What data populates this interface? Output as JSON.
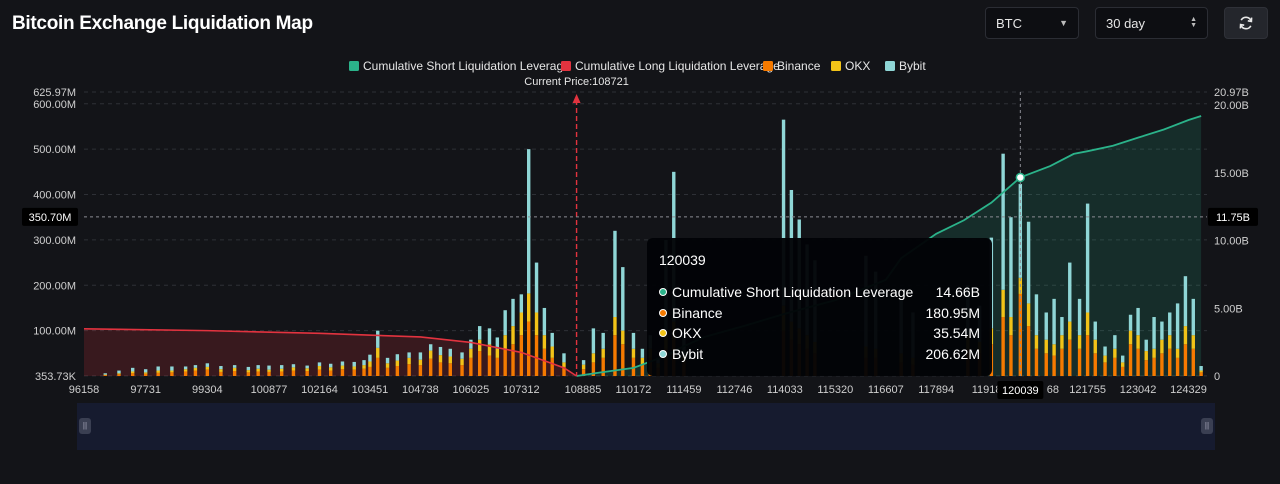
{
  "page": {
    "title": "Bitcoin Exchange Liquidation Map"
  },
  "controls": {
    "symbol": "BTC",
    "range": "30 day",
    "refresh_icon": "refresh-icon"
  },
  "colors": {
    "short_cum": "#2bb38a",
    "long_cum": "#e2333f",
    "binance": "#f57a00",
    "okx": "#f2c318",
    "bybit": "#8fd6d6",
    "background": "#131418"
  },
  "chart_data": {
    "type": "bar",
    "legend": [
      {
        "key": "short_cum",
        "label": "Cumulative Short Liquidation Leverage"
      },
      {
        "key": "long_cum",
        "label": "Cumulative Long Liquidation Leverage"
      },
      {
        "key": "binance",
        "label": "Binance"
      },
      {
        "key": "okx",
        "label": "OKX"
      },
      {
        "key": "bybit",
        "label": "Bybit"
      }
    ],
    "legend_position": "top-center",
    "x_ticks": [
      "96158",
      "97731",
      "99304",
      "100877",
      "102164",
      "103451",
      "104738",
      "106025",
      "107312",
      "108885",
      "110172",
      "111459",
      "112746",
      "114033",
      "115320",
      "116607",
      "117894",
      "11918",
      "120039",
      "68",
      "121755",
      "123042",
      "124329"
    ],
    "x_range": [
      96158,
      124800
    ],
    "left_axis": {
      "ticks": [
        "353.73K",
        "100.00M",
        "200.00M",
        "300.00M",
        "400.00M",
        "500.00M",
        "600.00M",
        "625.97M"
      ],
      "range": [
        0,
        625970000
      ]
    },
    "right_axis": {
      "ticks": [
        "0",
        "5.00B",
        "10.00B",
        "15.00B",
        "20.00B",
        "20.97B"
      ],
      "range": [
        0,
        20970000000
      ]
    },
    "current_price": {
      "label": "Current Price:108721",
      "value": 108721
    },
    "crosshair": {
      "x": 120039,
      "left_value": "350.70M",
      "right_value": "11.75B",
      "x_label": "120039"
    },
    "tooltip": {
      "header": "120039",
      "rows": [
        {
          "name": "Cumulative Short Liquidation Leverage",
          "value": "14.66B",
          "color": "#2bb38a"
        },
        {
          "name": "Binance",
          "value": "180.95M",
          "color": "#f57a00"
        },
        {
          "name": "OKX",
          "value": "35.54M",
          "color": "#f2c318"
        },
        {
          "name": "Bybit",
          "value": "206.62M",
          "color": "#8fd6d6"
        }
      ]
    },
    "long_cumulative_line": [
      [
        96158,
        104
      ],
      [
        99304,
        100
      ],
      [
        102164,
        94
      ],
      [
        104738,
        86
      ],
      [
        106025,
        74
      ],
      [
        107312,
        52
      ],
      [
        108400,
        18
      ],
      [
        108721,
        0
      ]
    ],
    "short_cumulative_line": [
      [
        108721,
        0
      ],
      [
        109300,
        0.25
      ],
      [
        110172,
        0.6
      ],
      [
        111000,
        1.5
      ],
      [
        111459,
        2.2
      ],
      [
        112000,
        2.9
      ],
      [
        113000,
        3.7
      ],
      [
        114033,
        4.6
      ],
      [
        115320,
        5.6
      ],
      [
        116607,
        7.1
      ],
      [
        117000,
        8.7
      ],
      [
        117894,
        10.5
      ],
      [
        118600,
        11.5
      ],
      [
        119300,
        12.8
      ],
      [
        120039,
        14.66
      ],
      [
        120800,
        15.5
      ],
      [
        121400,
        16.4
      ],
      [
        121755,
        16.6
      ],
      [
        122400,
        17.0
      ],
      [
        123042,
        17.6
      ],
      [
        123700,
        18.2
      ],
      [
        124329,
        18.9
      ],
      [
        124650,
        19.2
      ]
    ],
    "bars": [
      [
        96700,
        2,
        1,
        3
      ],
      [
        97050,
        4,
        2,
        6
      ],
      [
        97400,
        6,
        4,
        8
      ],
      [
        97731,
        5,
        3,
        7
      ],
      [
        98050,
        7,
        5,
        9
      ],
      [
        98400,
        8,
        4,
        9
      ],
      [
        98750,
        10,
        5,
        6
      ],
      [
        99000,
        12,
        6,
        6
      ],
      [
        99304,
        14,
        6,
        8
      ],
      [
        99650,
        9,
        6,
        7
      ],
      [
        100000,
        11,
        7,
        6
      ],
      [
        100350,
        8,
        5,
        7
      ],
      [
        100600,
        10,
        6,
        8
      ],
      [
        100877,
        9,
        5,
        9
      ],
      [
        101200,
        10,
        6,
        8
      ],
      [
        101500,
        12,
        7,
        7
      ],
      [
        101850,
        11,
        6,
        6
      ],
      [
        102164,
        14,
        8,
        8
      ],
      [
        102450,
        12,
        7,
        8
      ],
      [
        102750,
        15,
        8,
        9
      ],
      [
        103050,
        14,
        7,
        10
      ],
      [
        103300,
        16,
        8,
        11
      ],
      [
        103451,
        20,
        12,
        15
      ],
      [
        103650,
        40,
        22,
        38
      ],
      [
        103900,
        18,
        10,
        12
      ],
      [
        104150,
        22,
        12,
        14
      ],
      [
        104450,
        26,
        14,
        12
      ],
      [
        104738,
        24,
        12,
        16
      ],
      [
        105000,
        38,
        18,
        14
      ],
      [
        105250,
        30,
        16,
        18
      ],
      [
        105500,
        28,
        15,
        17
      ],
      [
        105800,
        24,
        14,
        14
      ],
      [
        106025,
        40,
        20,
        20
      ],
      [
        106250,
        55,
        25,
        30
      ],
      [
        106500,
        45,
        25,
        35
      ],
      [
        106700,
        40,
        20,
        25
      ],
      [
        106900,
        60,
        30,
        55
      ],
      [
        107100,
        70,
        40,
        60
      ],
      [
        107312,
        90,
        50,
        40
      ],
      [
        107500,
        120,
        62,
        318
      ],
      [
        107700,
        90,
        50,
        110
      ],
      [
        107900,
        60,
        30,
        60
      ],
      [
        108100,
        40,
        25,
        30
      ],
      [
        108400,
        20,
        10,
        20
      ],
      [
        108900,
        15,
        10,
        10
      ],
      [
        109150,
        30,
        20,
        55
      ],
      [
        109400,
        40,
        20,
        35
      ],
      [
        109700,
        90,
        40,
        190
      ],
      [
        109900,
        70,
        30,
        140
      ],
      [
        110172,
        40,
        20,
        35
      ],
      [
        110400,
        25,
        15,
        20
      ],
      [
        110600,
        40,
        20,
        30
      ],
      [
        110800,
        18,
        10,
        12
      ],
      [
        111000,
        60,
        30,
        210
      ],
      [
        111200,
        80,
        40,
        330
      ],
      [
        111459,
        30,
        15,
        45
      ],
      [
        114000,
        100,
        55,
        410
      ],
      [
        114200,
        80,
        40,
        290
      ],
      [
        114400,
        70,
        35,
        240
      ],
      [
        114600,
        60,
        30,
        200
      ],
      [
        114800,
        50,
        25,
        180
      ],
      [
        116100,
        40,
        25,
        200
      ],
      [
        116350,
        40,
        20,
        170
      ],
      [
        117000,
        30,
        20,
        120
      ],
      [
        117300,
        25,
        15,
        100
      ],
      [
        118700,
        60,
        30,
        110
      ],
      [
        119000,
        50,
        25,
        80
      ],
      [
        119300,
        70,
        35,
        200
      ],
      [
        119600,
        130,
        60,
        300
      ],
      [
        119800,
        90,
        40,
        220
      ],
      [
        120039,
        180.95,
        35.54,
        206.62
      ],
      [
        120250,
        110,
        50,
        180
      ],
      [
        120450,
        60,
        30,
        90
      ],
      [
        120700,
        50,
        30,
        60
      ],
      [
        120900,
        45,
        25,
        100
      ],
      [
        121100,
        60,
        30,
        40
      ],
      [
        121300,
        80,
        40,
        130
      ],
      [
        121550,
        60,
        30,
        80
      ],
      [
        121755,
        90,
        50,
        240
      ],
      [
        121950,
        50,
        30,
        40
      ],
      [
        122200,
        30,
        15,
        20
      ],
      [
        122450,
        40,
        20,
        30
      ],
      [
        122650,
        20,
        10,
        15
      ],
      [
        122850,
        70,
        30,
        35
      ],
      [
        123042,
        60,
        30,
        60
      ],
      [
        123250,
        35,
        20,
        25
      ],
      [
        123450,
        40,
        20,
        70
      ],
      [
        123650,
        50,
        30,
        40
      ],
      [
        123850,
        60,
        30,
        50
      ],
      [
        124050,
        40,
        20,
        100
      ],
      [
        124250,
        70,
        40,
        110
      ],
      [
        124450,
        60,
        30,
        80
      ],
      [
        124650,
        8,
        4,
        10
      ]
    ],
    "bar_units": "M",
    "short_line_units": "B",
    "long_line_units": "M"
  }
}
